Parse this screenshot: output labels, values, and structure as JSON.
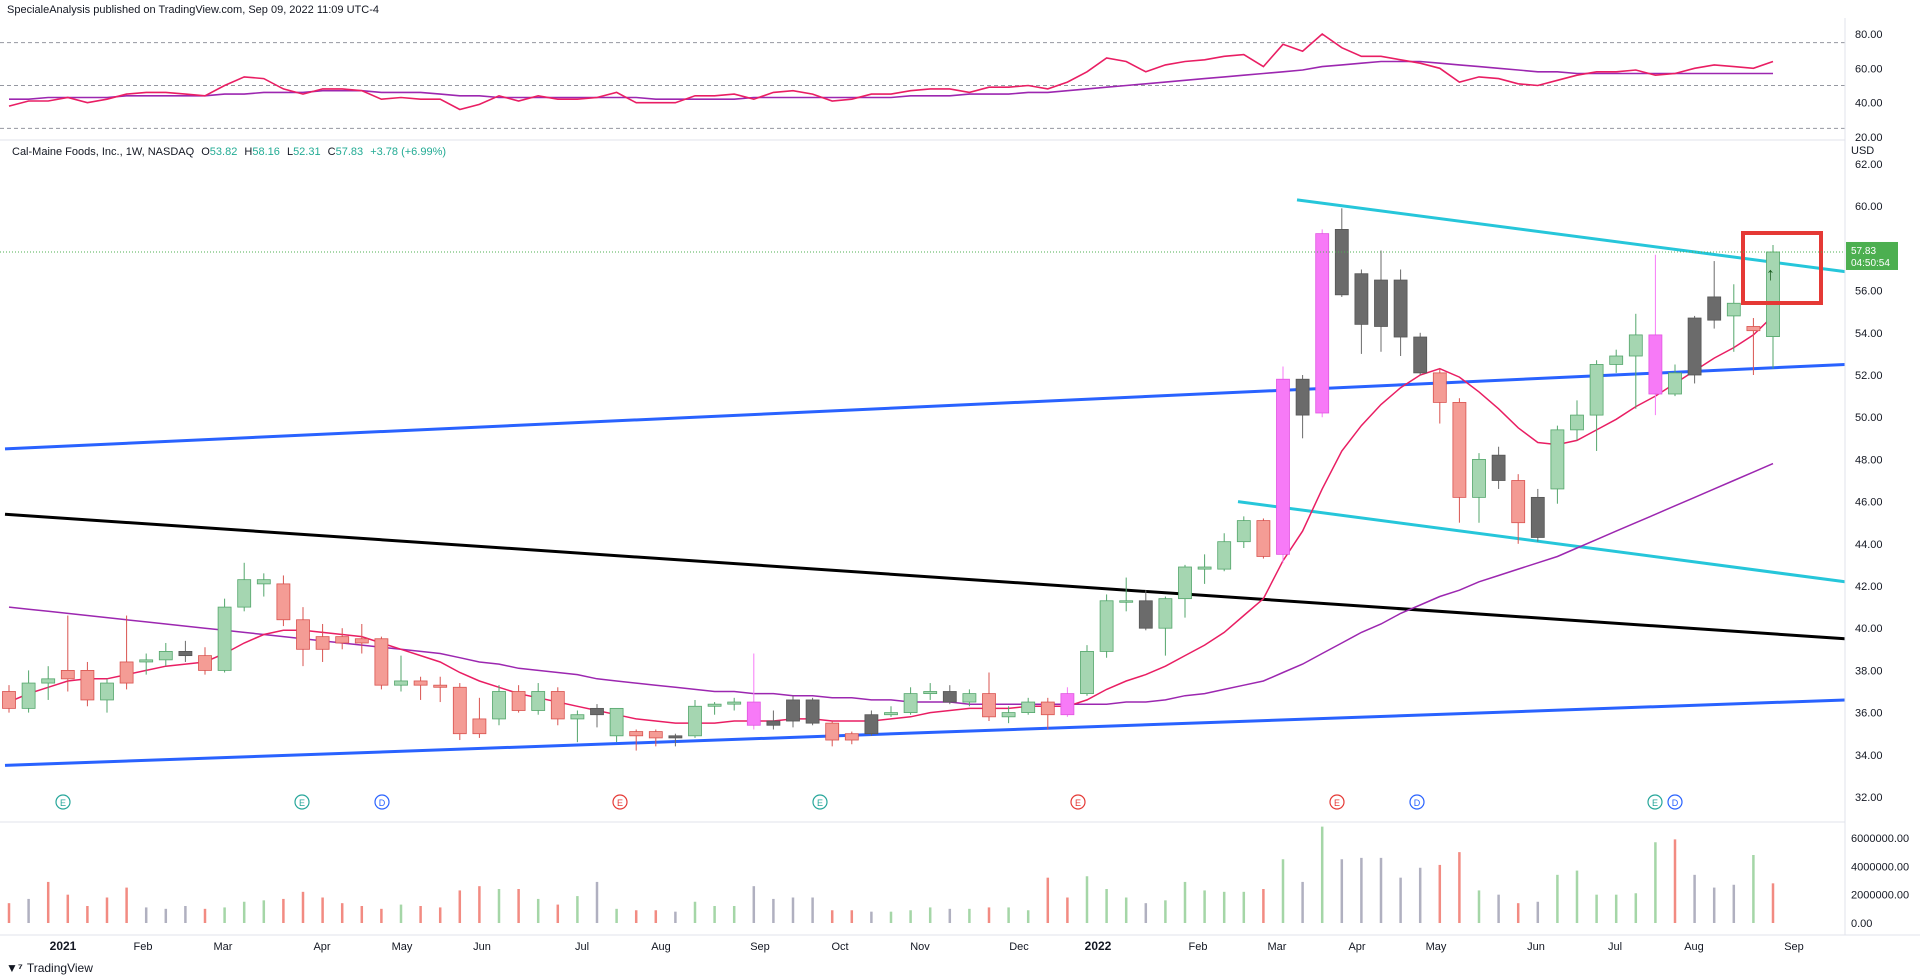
{
  "header": {
    "published": "SpecialeAnalysis published on TradingView.com, Sep 09, 2022 11:09 UTC-4",
    "symbol": "Cal-Maine Foods, Inc., 1W, NASDAQ",
    "o_label": "O",
    "o_value": "53.82",
    "h_label": "H",
    "h_value": "58.16",
    "l_label": "L",
    "l_value": "52.31",
    "c_label": "C",
    "c_value": "57.83",
    "change": "+3.78 (+6.99%)"
  },
  "brand": {
    "logo": "𝟭𝟳",
    "name": "TradingView"
  },
  "price_axis": {
    "currency": "USD",
    "last_price": "57.83",
    "countdown": "04:50:54"
  },
  "colors": {
    "up": "#a5d6b1",
    "up_border": "#53a66b",
    "down": "#f49c95",
    "down_border": "#d9534f",
    "gray": "#6b6b6b",
    "magenta": "#f77af7",
    "ema_fast": "#e91e63",
    "ema_slow": "#9c27b0",
    "channel_blue": "#2962ff",
    "channel_cyan": "#26c6da",
    "trend_black": "#000000",
    "highlight": "#e53935",
    "last_badge": "#4caf50"
  },
  "chart_data": {
    "type": "candlestick",
    "ylim": [
      31,
      63
    ],
    "y_ticks": [
      "62.00",
      "60.00",
      "58.00",
      "56.00",
      "54.00",
      "52.00",
      "50.00",
      "48.00",
      "46.00",
      "44.00",
      "42.00",
      "40.00",
      "38.00",
      "36.00",
      "34.00",
      "32.00"
    ],
    "x_ticks": [
      "2021",
      "Feb",
      "Mar",
      "Apr",
      "May",
      "Jun",
      "Jul",
      "Aug",
      "Sep",
      "Oct",
      "Nov",
      "Dec",
      "2022",
      "Feb",
      "Mar",
      "Apr",
      "May",
      "Jun",
      "Jul",
      "Aug",
      "Sep"
    ],
    "candles": [
      [
        37.0,
        36.2,
        37.3,
        36.0,
        "down"
      ],
      [
        36.2,
        37.4,
        38.0,
        36.0,
        "up"
      ],
      [
        37.4,
        37.6,
        38.2,
        36.6,
        "up"
      ],
      [
        37.6,
        38.0,
        40.6,
        37.0,
        "down"
      ],
      [
        38.0,
        36.6,
        38.4,
        36.3,
        "down"
      ],
      [
        36.6,
        37.4,
        37.6,
        36.0,
        "up"
      ],
      [
        37.4,
        38.4,
        40.6,
        37.1,
        "down"
      ],
      [
        38.4,
        38.5,
        38.8,
        37.8,
        "up"
      ],
      [
        38.5,
        38.9,
        39.3,
        38.2,
        "up"
      ],
      [
        38.9,
        38.7,
        39.4,
        38.4,
        "gray"
      ],
      [
        38.7,
        38.0,
        39.1,
        37.8,
        "down"
      ],
      [
        38.0,
        41.0,
        41.4,
        37.9,
        "up"
      ],
      [
        41.0,
        42.3,
        43.1,
        40.8,
        "up"
      ],
      [
        42.3,
        42.1,
        42.6,
        41.5,
        "up"
      ],
      [
        42.1,
        40.4,
        42.5,
        40.1,
        "down"
      ],
      [
        40.4,
        39.0,
        41.0,
        38.2,
        "down"
      ],
      [
        39.0,
        39.6,
        40.2,
        38.4,
        "down"
      ],
      [
        39.6,
        39.3,
        40.0,
        39.0,
        "down"
      ],
      [
        39.3,
        39.5,
        40.2,
        38.8,
        "down"
      ],
      [
        39.5,
        37.3,
        39.6,
        37.1,
        "down"
      ],
      [
        37.3,
        37.5,
        38.7,
        37.0,
        "up"
      ],
      [
        37.5,
        37.3,
        37.7,
        36.6,
        "down"
      ],
      [
        37.3,
        37.2,
        37.7,
        36.5,
        "down"
      ],
      [
        37.2,
        35.0,
        37.4,
        34.7,
        "down"
      ],
      [
        35.0,
        35.7,
        36.7,
        34.8,
        "down"
      ],
      [
        35.7,
        37.0,
        37.3,
        35.4,
        "up"
      ],
      [
        37.0,
        36.1,
        37.3,
        36.0,
        "down"
      ],
      [
        36.1,
        37.0,
        37.4,
        35.9,
        "up"
      ],
      [
        37.0,
        35.7,
        37.2,
        35.4,
        "down"
      ],
      [
        35.7,
        35.9,
        36.1,
        34.6,
        "up"
      ],
      [
        35.9,
        36.2,
        36.4,
        35.3,
        "gray"
      ],
      [
        36.2,
        34.9,
        35.9,
        34.6,
        "up"
      ],
      [
        34.9,
        35.1,
        35.2,
        34.2,
        "down"
      ],
      [
        35.1,
        34.8,
        35.2,
        34.4,
        "down"
      ],
      [
        34.8,
        34.9,
        35.0,
        34.4,
        "gray"
      ],
      [
        34.9,
        36.3,
        36.6,
        34.8,
        "up"
      ],
      [
        36.3,
        36.4,
        36.5,
        35.9,
        "up"
      ],
      [
        36.4,
        36.5,
        36.7,
        36.1,
        "up"
      ],
      [
        36.5,
        35.4,
        38.8,
        35.2,
        "magenta"
      ],
      [
        35.4,
        35.6,
        36.1,
        35.2,
        "gray"
      ],
      [
        35.6,
        36.6,
        36.8,
        35.3,
        "gray"
      ],
      [
        36.6,
        35.5,
        36.7,
        35.4,
        "gray"
      ],
      [
        35.5,
        34.7,
        35.6,
        34.4,
        "down"
      ],
      [
        34.7,
        35.0,
        35.1,
        34.5,
        "down"
      ],
      [
        35.0,
        35.9,
        36.1,
        34.9,
        "gray"
      ],
      [
        35.9,
        36.0,
        36.3,
        35.8,
        "up"
      ],
      [
        36.0,
        36.9,
        37.2,
        35.9,
        "up"
      ],
      [
        36.9,
        37.0,
        37.4,
        36.6,
        "up"
      ],
      [
        37.0,
        36.5,
        37.3,
        36.4,
        "gray"
      ],
      [
        36.5,
        36.9,
        37.1,
        36.3,
        "up"
      ],
      [
        36.9,
        35.8,
        37.9,
        35.6,
        "down"
      ],
      [
        35.8,
        36.0,
        36.3,
        35.5,
        "up"
      ],
      [
        36.0,
        36.5,
        36.7,
        35.9,
        "up"
      ],
      [
        36.5,
        35.9,
        36.7,
        35.2,
        "down"
      ],
      [
        35.9,
        36.9,
        37.2,
        35.8,
        "magenta"
      ],
      [
        36.9,
        38.9,
        39.2,
        36.8,
        "up"
      ],
      [
        38.9,
        41.3,
        41.6,
        38.6,
        "up"
      ],
      [
        41.3,
        41.3,
        42.4,
        40.8,
        "up"
      ],
      [
        41.3,
        40.0,
        41.8,
        39.9,
        "gray"
      ],
      [
        40.0,
        41.4,
        41.5,
        38.7,
        "up"
      ],
      [
        41.4,
        42.9,
        43.0,
        40.5,
        "up"
      ],
      [
        42.9,
        42.8,
        43.5,
        42.1,
        "up"
      ],
      [
        42.8,
        44.1,
        44.5,
        42.7,
        "up"
      ],
      [
        44.1,
        45.1,
        45.3,
        43.8,
        "up"
      ],
      [
        45.1,
        43.4,
        45.2,
        43.3,
        "down"
      ],
      [
        43.5,
        51.8,
        52.4,
        43.1,
        "magenta"
      ],
      [
        51.8,
        50.1,
        52.0,
        49.0,
        "gray"
      ],
      [
        50.2,
        58.7,
        58.9,
        50.0,
        "magenta"
      ],
      [
        58.9,
        55.8,
        59.9,
        55.7,
        "gray"
      ],
      [
        56.8,
        54.4,
        57.0,
        53.0,
        "gray"
      ],
      [
        56.5,
        54.3,
        57.9,
        53.1,
        "gray"
      ],
      [
        56.5,
        53.8,
        57.0,
        52.9,
        "gray"
      ],
      [
        53.8,
        52.1,
        54.0,
        52.0,
        "gray"
      ],
      [
        52.1,
        50.7,
        52.3,
        49.7,
        "down"
      ],
      [
        50.7,
        46.2,
        50.9,
        45.0,
        "down"
      ],
      [
        46.2,
        48.0,
        48.3,
        45.0,
        "up"
      ],
      [
        48.2,
        47.0,
        48.6,
        46.6,
        "gray"
      ],
      [
        47.0,
        45.0,
        47.3,
        44.0,
        "down"
      ],
      [
        46.2,
        44.3,
        46.6,
        44.1,
        "gray"
      ],
      [
        46.6,
        49.4,
        49.6,
        45.9,
        "up"
      ],
      [
        49.4,
        50.1,
        50.8,
        48.9,
        "up"
      ],
      [
        50.1,
        52.5,
        52.7,
        48.4,
        "up"
      ],
      [
        52.5,
        52.9,
        53.2,
        52.1,
        "up"
      ],
      [
        52.9,
        53.9,
        54.9,
        50.4,
        "up"
      ],
      [
        53.9,
        51.1,
        57.7,
        50.1,
        "magenta"
      ],
      [
        51.1,
        52.1,
        52.5,
        51.0,
        "up"
      ],
      [
        52.0,
        54.7,
        54.8,
        51.6,
        "gray"
      ],
      [
        54.6,
        55.7,
        57.4,
        54.2,
        "gray"
      ],
      [
        54.8,
        55.4,
        56.3,
        53.1,
        "up"
      ],
      [
        54.3,
        54.1,
        54.7,
        52.0,
        "down"
      ],
      [
        53.82,
        57.83,
        58.16,
        52.31,
        "up"
      ]
    ],
    "ema_fast": [
      36.5,
      36.9,
      37.2,
      37.5,
      37.6,
      37.6,
      37.8,
      38.0,
      38.2,
      38.3,
      38.4,
      38.8,
      39.3,
      39.7,
      39.9,
      39.9,
      39.8,
      39.7,
      39.6,
      39.3,
      39.0,
      38.7,
      38.4,
      37.9,
      37.5,
      37.2,
      36.9,
      36.7,
      36.5,
      36.3,
      36.1,
      35.9,
      35.7,
      35.6,
      35.5,
      35.5,
      35.5,
      35.6,
      35.6,
      35.6,
      35.7,
      35.7,
      35.6,
      35.6,
      35.6,
      35.7,
      35.8,
      36.0,
      36.1,
      36.2,
      36.2,
      36.2,
      36.3,
      36.3,
      36.3,
      36.6,
      37.1,
      37.5,
      37.8,
      38.2,
      38.7,
      39.2,
      39.8,
      40.6,
      41.4,
      43.2,
      44.6,
      46.6,
      48.4,
      49.6,
      50.6,
      51.4,
      52.0,
      52.3,
      51.9,
      51.2,
      50.4,
      49.5,
      48.8,
      48.7,
      48.9,
      49.4,
      49.9,
      50.5,
      51.0,
      51.6,
      52.2,
      52.8,
      53.3,
      53.9,
      54.8
    ],
    "ema_slow": [
      41.0,
      40.9,
      40.8,
      40.7,
      40.6,
      40.5,
      40.4,
      40.3,
      40.2,
      40.1,
      40.0,
      39.9,
      39.8,
      39.7,
      39.6,
      39.5,
      39.4,
      39.3,
      39.2,
      39.1,
      39.0,
      38.9,
      38.8,
      38.6,
      38.4,
      38.3,
      38.1,
      38.0,
      37.9,
      37.8,
      37.6,
      37.5,
      37.4,
      37.3,
      37.2,
      37.1,
      37.0,
      37.0,
      36.9,
      36.9,
      36.8,
      36.8,
      36.7,
      36.7,
      36.6,
      36.6,
      36.5,
      36.5,
      36.5,
      36.4,
      36.4,
      36.4,
      36.4,
      36.4,
      36.4,
      36.4,
      36.4,
      36.5,
      36.5,
      36.6,
      36.8,
      36.9,
      37.1,
      37.3,
      37.5,
      37.9,
      38.3,
      38.8,
      39.3,
      39.8,
      40.2,
      40.7,
      41.1,
      41.5,
      41.8,
      42.2,
      42.5,
      42.8,
      43.1,
      43.4,
      43.8,
      44.2,
      44.6,
      45.0,
      45.4,
      45.8,
      46.2,
      46.6,
      47.0,
      47.4,
      47.8
    ],
    "rsi": {
      "ylim": [
        17,
        88
      ],
      "ticks": [
        "80.00",
        "60.00",
        "40.00",
        "20.00"
      ],
      "dashed_levels": [
        75,
        50,
        25
      ],
      "rsi_values": [
        38,
        41,
        41,
        43,
        40,
        42,
        45,
        46,
        46,
        45,
        44,
        50,
        55,
        54,
        48,
        45,
        48,
        48,
        47,
        42,
        43,
        42,
        42,
        36,
        39,
        44,
        41,
        44,
        42,
        42,
        43,
        46,
        40,
        40,
        40,
        44,
        44,
        45,
        42,
        46,
        47,
        45,
        41,
        42,
        45,
        45,
        47,
        48,
        48,
        46,
        49,
        49,
        50,
        48,
        52,
        58,
        66,
        64,
        58,
        62,
        64,
        65,
        67,
        68,
        61,
        74,
        70,
        80,
        72,
        67,
        67,
        65,
        63,
        60,
        52,
        55,
        54,
        51,
        50,
        53,
        56,
        58,
        58,
        59,
        56,
        57,
        60,
        62,
        61,
        60,
        64
      ],
      "signal_values": [
        42,
        42,
        42,
        43,
        43,
        43,
        44,
        44,
        44,
        44,
        44,
        45,
        45,
        46,
        46,
        46,
        47,
        47,
        47,
        46,
        46,
        46,
        45,
        44,
        44,
        43,
        43,
        43,
        43,
        43,
        43,
        43,
        43,
        42,
        42,
        42,
        42,
        42,
        43,
        43,
        43,
        43,
        43,
        43,
        43,
        43,
        44,
        44,
        44,
        45,
        45,
        45,
        46,
        46,
        47,
        48,
        49,
        50,
        51,
        52,
        53,
        54,
        55,
        56,
        57,
        58,
        59,
        61,
        62,
        63,
        64,
        64,
        64,
        63,
        62,
        61,
        60,
        59,
        58,
        58,
        57,
        57,
        57,
        57,
        57,
        57,
        57,
        57,
        57,
        57,
        57
      ],
      "ema_values": [
        42,
        42,
        43,
        43,
        43,
        43,
        44,
        44,
        44,
        44,
        44,
        45,
        45,
        46,
        46,
        46,
        47,
        47,
        47,
        46,
        46,
        46,
        45,
        44,
        44,
        43,
        43,
        43,
        43,
        43,
        43,
        43,
        43,
        42,
        42,
        42,
        42,
        42,
        43,
        43,
        43,
        43,
        43,
        43,
        43,
        43,
        44,
        44,
        44,
        45,
        45,
        45,
        46,
        46,
        47,
        48,
        49,
        50,
        51,
        52,
        53,
        54,
        55,
        56,
        57,
        58,
        59,
        61,
        62,
        63,
        64,
        64,
        64,
        63,
        62,
        61,
        60,
        59,
        58,
        58,
        57,
        57,
        57,
        57,
        57,
        57,
        57,
        57,
        57,
        57,
        57
      ]
    },
    "volume": {
      "ticks": [
        "6000000.00",
        "4000000.00",
        "2000000.00",
        "0.00"
      ],
      "ylim": [
        0,
        7000000
      ],
      "values": [
        1400000,
        1700000,
        2900000,
        2000000,
        1200000,
        1800000,
        2500000,
        1100000,
        1000000,
        1200000,
        1000000,
        1100000,
        1500000,
        1600000,
        1700000,
        2200000,
        1800000,
        1400000,
        1200000,
        1000000,
        1300000,
        1200000,
        1100000,
        2300000,
        2600000,
        2400000,
        2400000,
        1700000,
        1300000,
        1900000,
        2900000,
        1000000,
        900000,
        900000,
        800000,
        1500000,
        1200000,
        1200000,
        2600000,
        1700000,
        1800000,
        1800000,
        900000,
        900000,
        800000,
        800000,
        900000,
        1100000,
        1000000,
        1000000,
        1100000,
        1100000,
        900000,
        3200000,
        1800000,
        3300000,
        2400000,
        1800000,
        1400000,
        1600000,
        2900000,
        2300000,
        2200000,
        2200000,
        2400000,
        4500000,
        2900000,
        6800000,
        4500000,
        4600000,
        4600000,
        3200000,
        3900000,
        4100000,
        5000000,
        2300000,
        2000000,
        1400000,
        1500000,
        3400000,
        3700000,
        2000000,
        2000000,
        2100000,
        5700000,
        5900000,
        3400000,
        2500000,
        2700000,
        4800000,
        2800000
      ],
      "colors": [
        "down",
        "gray",
        "down",
        "down",
        "down",
        "down",
        "down",
        "gray",
        "gray",
        "gray",
        "down",
        "up",
        "up",
        "up",
        "down",
        "down",
        "down",
        "down",
        "down",
        "down",
        "up",
        "down",
        "down",
        "down",
        "down",
        "up",
        "down",
        "up",
        "down",
        "up",
        "gray",
        "up",
        "down",
        "down",
        "gray",
        "up",
        "up",
        "up",
        "gray",
        "gray",
        "gray",
        "gray",
        "down",
        "down",
        "gray",
        "up",
        "up",
        "up",
        "gray",
        "up",
        "down",
        "up",
        "up",
        "down",
        "down",
        "up",
        "up",
        "up",
        "gray",
        "up",
        "up",
        "up",
        "up",
        "up",
        "down",
        "up",
        "gray",
        "up",
        "gray",
        "gray",
        "gray",
        "gray",
        "gray",
        "down",
        "down",
        "up",
        "gray",
        "down",
        "gray",
        "up",
        "up",
        "up",
        "up",
        "up",
        "up",
        "down",
        "gray",
        "gray",
        "gray",
        "up",
        "down"
      ]
    },
    "earnings_markers": [
      "E",
      "E",
      "D",
      "E",
      "E",
      "E",
      "E",
      "D",
      "E",
      "D"
    ]
  }
}
